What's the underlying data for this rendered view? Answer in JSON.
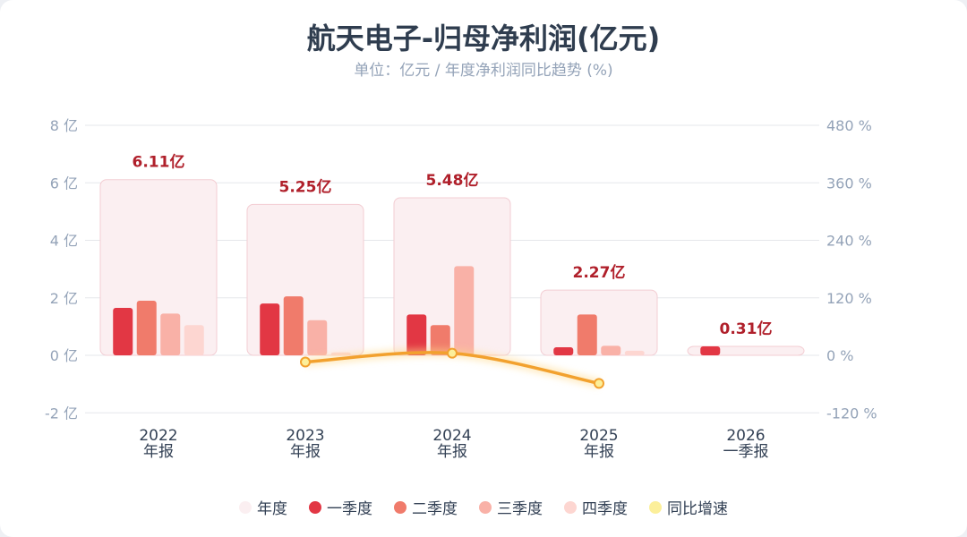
{
  "title": "航天电子-归母净利润(亿元)",
  "subtitle": "单位：亿元 / 年度净利润同比趋势 (%)",
  "colors": {
    "annual": "#fbeff1",
    "q1": "#e23744",
    "q2": "#f07b6b",
    "q3": "#f9b1a7",
    "q4": "#fdd6d1",
    "yoy": "#f2a12e",
    "yoy_marker": "#fcef9a",
    "annual_label": "#b0202b"
  },
  "legend": [
    {
      "key": "annual",
      "label": "年度"
    },
    {
      "key": "q1",
      "label": "一季度"
    },
    {
      "key": "q2",
      "label": "二季度"
    },
    {
      "key": "q3",
      "label": "三季度"
    },
    {
      "key": "q4",
      "label": "四季度"
    },
    {
      "key": "yoy_marker",
      "label": "同比增速"
    }
  ],
  "chart_data": {
    "type": "bar",
    "title": "航天电子-归母净利润(亿元)",
    "subtitle": "单位：亿元 / 年度净利润同比趋势 (%)",
    "categories": [
      {
        "year": "2022",
        "period": "年报"
      },
      {
        "year": "2023",
        "period": "年报"
      },
      {
        "year": "2024",
        "period": "年报"
      },
      {
        "year": "2025",
        "period": "年报"
      },
      {
        "year": "2026",
        "period": "一季报"
      }
    ],
    "annual": {
      "values": [
        6.11,
        5.25,
        5.48,
        2.27,
        0.31
      ],
      "labels": [
        "6.11亿",
        "5.25亿",
        "5.48亿",
        "2.27亿",
        "0.31亿"
      ]
    },
    "quarters": [
      {
        "name": "一季度",
        "values": [
          1.65,
          1.8,
          1.42,
          0.28,
          0.31
        ]
      },
      {
        "name": "二季度",
        "values": [
          1.9,
          2.05,
          1.05,
          1.42,
          null
        ]
      },
      {
        "name": "三季度",
        "values": [
          1.45,
          1.22,
          3.1,
          0.33,
          null
        ]
      },
      {
        "name": "四季度",
        "values": [
          1.05,
          0.1,
          0.03,
          0.16,
          null
        ]
      }
    ],
    "yoy": {
      "name": "同比增速",
      "values": [
        null,
        -14.1,
        4.4,
        -58.6,
        null
      ]
    },
    "y_left": {
      "min": -2,
      "max": 8,
      "ticks": [
        8,
        6,
        4,
        2,
        0,
        -2
      ],
      "unit": "亿"
    },
    "y_right": {
      "min": -120,
      "max": 480,
      "ticks": [
        480,
        360,
        240,
        120,
        0,
        -120
      ],
      "unit": "%"
    },
    "grid": true,
    "legend_position": "bottom"
  }
}
